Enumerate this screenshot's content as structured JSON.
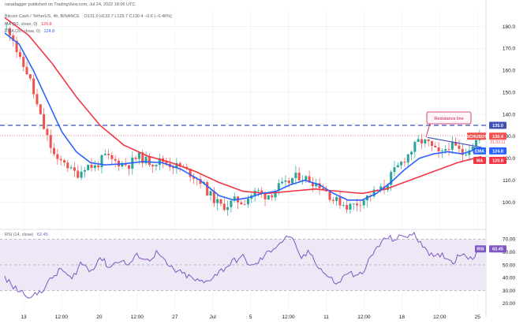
{
  "header": {
    "publisher": "ranadagger published on TradingView.com, Jul 24, 2022 18:06 UTC",
    "symbol_line": "Bitcoin Cash / TetherUS, 4h, BINANCE",
    "ohlc": "O131.0  H132.7  L129.7  C130.4  −0.6 (−0.46%)",
    "ma_legend": "MA (50, close, 0)",
    "ma_value": "120.8",
    "ema_legend": "EMA (20, close, 0)",
    "ema_value": "124.8",
    "rsi_legend": "RSI (14, close)",
    "rsi_value": "62.45"
  },
  "colors": {
    "up": "#26a69a",
    "down": "#ef5350",
    "ema": "#2962ff",
    "ma": "#f23645",
    "rsi": "#7e57c2",
    "rsi_band": "#ede7f6",
    "level": "#3f51b5",
    "annotation": "#c2185b"
  },
  "chart_data": [
    {
      "type": "candlestick",
      "title": "Bitcoin Cash / TetherUS, 4h, BINANCE",
      "x_tick_labels": [
        "13",
        "12:00",
        "20",
        "12:00",
        "27",
        "Jul",
        "5",
        "12:00",
        "11",
        "12:00",
        "18",
        "12:00",
        "25"
      ],
      "ylim": [
        88,
        187
      ],
      "y_ticks": [
        100,
        110,
        120,
        130,
        140,
        150,
        160,
        170,
        180
      ],
      "y_tick_labels": [
        "100.0",
        "110.0",
        "120.0",
        "130.0",
        "140.0",
        "150.0",
        "160.0",
        "170.0",
        "180.0"
      ],
      "grid": true,
      "scale": "linear",
      "horizontal_level": {
        "value": 135.0,
        "label": "135.0"
      },
      "trendline": {
        "label": "Resistance line",
        "from": [
          0.887,
          129.5
        ],
        "to": [
          1.0,
          125.0
        ]
      },
      "series": [
        {
          "name": "BCHUSDT",
          "value_label": "130.4",
          "countdown": "01:53:11",
          "anchors": [
            [
              0,
              179
            ],
            [
              0.015,
              177
            ],
            [
              0.03,
              165
            ],
            [
              0.05,
              158
            ],
            [
              0.065,
              146
            ],
            [
              0.08,
              135
            ],
            [
              0.095,
              126
            ],
            [
              0.11,
              118
            ],
            [
              0.125,
              119
            ],
            [
              0.14,
              114
            ],
            [
              0.155,
              113
            ],
            [
              0.17,
              117
            ],
            [
              0.19,
              116
            ],
            [
              0.21,
              121
            ],
            [
              0.225,
              119
            ],
            [
              0.24,
              118
            ],
            [
              0.26,
              117
            ],
            [
              0.28,
              121
            ],
            [
              0.295,
              119
            ],
            [
              0.31,
              118
            ],
            [
              0.33,
              119
            ],
            [
              0.35,
              117
            ],
            [
              0.37,
              116
            ],
            [
              0.39,
              113
            ],
            [
              0.41,
              110
            ],
            [
              0.425,
              105
            ],
            [
              0.44,
              101
            ],
            [
              0.455,
              98
            ],
            [
              0.47,
              99
            ],
            [
              0.485,
              101
            ],
            [
              0.5,
              100
            ],
            [
              0.515,
              103
            ],
            [
              0.53,
              105
            ],
            [
              0.545,
              103
            ],
            [
              0.56,
              104
            ],
            [
              0.575,
              107
            ],
            [
              0.59,
              108
            ],
            [
              0.605,
              111
            ],
            [
              0.62,
              112
            ],
            [
              0.64,
              110
            ],
            [
              0.66,
              108
            ],
            [
              0.675,
              105
            ],
            [
              0.69,
              101
            ],
            [
              0.705,
              100
            ],
            [
              0.72,
              98
            ],
            [
              0.735,
              99
            ],
            [
              0.75,
              101
            ],
            [
              0.765,
              103
            ],
            [
              0.78,
              105
            ],
            [
              0.795,
              106
            ],
            [
              0.81,
              112
            ],
            [
              0.825,
              116
            ],
            [
              0.84,
              120
            ],
            [
              0.855,
              124
            ],
            [
              0.87,
              128
            ],
            [
              0.887,
              127
            ],
            [
              0.9,
              124
            ],
            [
              0.915,
              121
            ],
            [
              0.93,
              126
            ],
            [
              0.945,
              125
            ],
            [
              0.96,
              122
            ],
            [
              0.975,
              125
            ],
            [
              1.0,
              130.4
            ]
          ]
        },
        {
          "name": "EMA",
          "value_label": "124.8",
          "anchors": [
            [
              0,
              177
            ],
            [
              0.03,
              172
            ],
            [
              0.06,
              160
            ],
            [
              0.09,
              146
            ],
            [
              0.12,
              132
            ],
            [
              0.15,
              123
            ],
            [
              0.18,
              118
            ],
            [
              0.21,
              117
            ],
            [
              0.25,
              117.5
            ],
            [
              0.29,
              118.5
            ],
            [
              0.33,
              118
            ],
            [
              0.37,
              115
            ],
            [
              0.41,
              110
            ],
            [
              0.45,
              103
            ],
            [
              0.48,
              101
            ],
            [
              0.51,
              102
            ],
            [
              0.54,
              104
            ],
            [
              0.57,
              105
            ],
            [
              0.6,
              108
            ],
            [
              0.63,
              110
            ],
            [
              0.66,
              108
            ],
            [
              0.69,
              104
            ],
            [
              0.72,
              101
            ],
            [
              0.75,
              101
            ],
            [
              0.78,
              104
            ],
            [
              0.81,
              109
            ],
            [
              0.84,
              115
            ],
            [
              0.87,
              120
            ],
            [
              0.9,
              122
            ],
            [
              0.93,
              123
            ],
            [
              0.96,
              122
            ],
            [
              1.0,
              124.8
            ]
          ]
        },
        {
          "name": "MA",
          "value_label": "120.8",
          "anchors": [
            [
              0,
              184
            ],
            [
              0.05,
              176
            ],
            [
              0.1,
              163
            ],
            [
              0.15,
              148
            ],
            [
              0.2,
              135
            ],
            [
              0.25,
              126
            ],
            [
              0.3,
              121
            ],
            [
              0.35,
              118
            ],
            [
              0.4,
              114
            ],
            [
              0.45,
              109
            ],
            [
              0.5,
              105
            ],
            [
              0.55,
              104
            ],
            [
              0.6,
              105
            ],
            [
              0.65,
              106
            ],
            [
              0.7,
              105
            ],
            [
              0.75,
              104
            ],
            [
              0.8,
              106
            ],
            [
              0.85,
              110
            ],
            [
              0.9,
              114
            ],
            [
              0.95,
              118
            ],
            [
              1.0,
              120.8
            ]
          ]
        }
      ]
    },
    {
      "type": "line",
      "title": "RSI (14, close)",
      "ylim": [
        15,
        77
      ],
      "y_ticks": [
        20,
        30,
        40,
        50,
        60,
        70
      ],
      "y_tick_labels": [
        "20.00",
        "30.00",
        "40.00",
        "50.00",
        "60.00",
        "70.00"
      ],
      "band": [
        30,
        70
      ],
      "series": [
        {
          "name": "RSI",
          "value_label": "62.45",
          "anchors": [
            [
              0,
              40
            ],
            [
              0.02,
              32
            ],
            [
              0.04,
              28
            ],
            [
              0.06,
              25
            ],
            [
              0.08,
              31
            ],
            [
              0.1,
              40
            ],
            [
              0.12,
              47
            ],
            [
              0.14,
              38
            ],
            [
              0.16,
              52
            ],
            [
              0.18,
              45
            ],
            [
              0.2,
              56
            ],
            [
              0.22,
              48
            ],
            [
              0.24,
              54
            ],
            [
              0.26,
              50
            ],
            [
              0.28,
              58
            ],
            [
              0.3,
              53
            ],
            [
              0.32,
              60
            ],
            [
              0.34,
              50
            ],
            [
              0.36,
              45
            ],
            [
              0.38,
              42
            ],
            [
              0.4,
              38
            ],
            [
              0.42,
              36
            ],
            [
              0.44,
              42
            ],
            [
              0.46,
              47
            ],
            [
              0.48,
              53
            ],
            [
              0.5,
              56
            ],
            [
              0.52,
              48
            ],
            [
              0.54,
              55
            ],
            [
              0.56,
              62
            ],
            [
              0.58,
              68
            ],
            [
              0.6,
              73
            ],
            [
              0.62,
              55
            ],
            [
              0.64,
              60
            ],
            [
              0.66,
              48
            ],
            [
              0.68,
              40
            ],
            [
              0.7,
              35
            ],
            [
              0.72,
              45
            ],
            [
              0.74,
              40
            ],
            [
              0.76,
              50
            ],
            [
              0.78,
              63
            ],
            [
              0.8,
              71
            ],
            [
              0.82,
              70
            ],
            [
              0.84,
              73
            ],
            [
              0.86,
              73
            ],
            [
              0.88,
              65
            ],
            [
              0.9,
              55
            ],
            [
              0.92,
              58
            ],
            [
              0.94,
              52
            ],
            [
              0.96,
              60
            ],
            [
              0.98,
              55
            ],
            [
              1.0,
              62.45
            ]
          ]
        }
      ]
    }
  ]
}
